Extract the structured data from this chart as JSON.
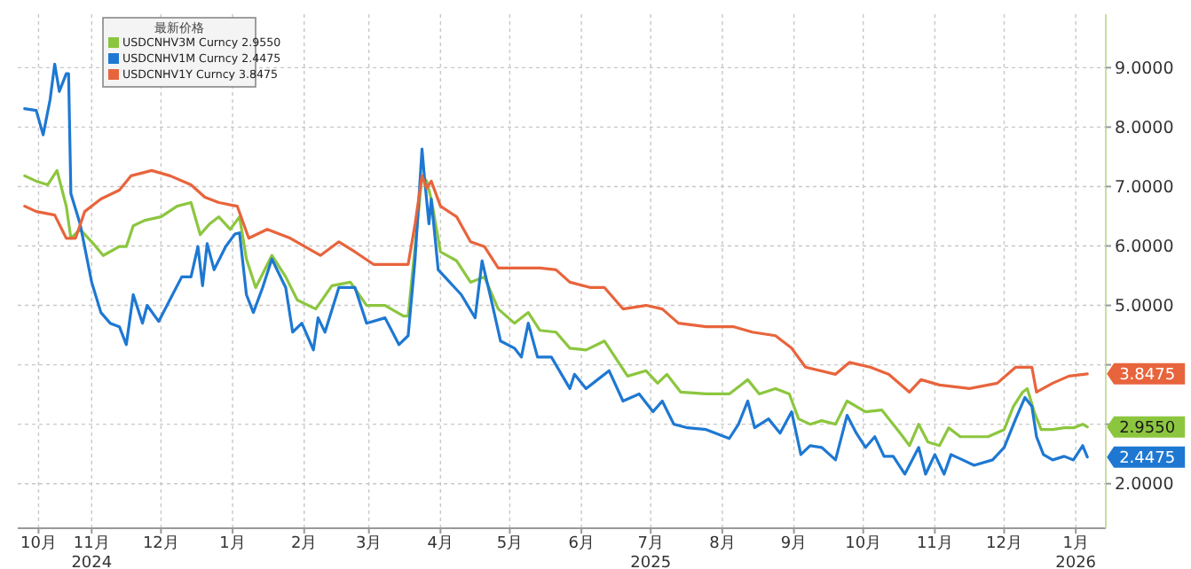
{
  "chart_data": {
    "type": "line",
    "legend_title": "最新价格",
    "legend": "top left",
    "grid": true,
    "line_style": "solid",
    "marker": "none",
    "xlim": [
      "2024-10-14",
      "2026-01-28"
    ],
    "xticks": [
      {
        "value": "2024-10-23",
        "label": "10月"
      },
      {
        "value": "2024-11-15",
        "label": "11月\n2024"
      },
      {
        "value": "2024-12-15",
        "label": "12月"
      },
      {
        "value": "2025-01-15",
        "label": "1月"
      },
      {
        "value": "2025-02-15",
        "label": "2月"
      },
      {
        "value": "2025-03-15",
        "label": "3月"
      },
      {
        "value": "2025-04-15",
        "label": "4月"
      },
      {
        "value": "2025-05-15",
        "label": "5月"
      },
      {
        "value": "2025-06-15",
        "label": "6月"
      },
      {
        "value": "2025-07-15",
        "label": "7月\n2025"
      },
      {
        "value": "2025-08-15",
        "label": "8月"
      },
      {
        "value": "2025-09-15",
        "label": "9月"
      },
      {
        "value": "2025-10-15",
        "label": "10月"
      },
      {
        "value": "2025-11-15",
        "label": "11月"
      },
      {
        "value": "2025-12-15",
        "label": "12月"
      },
      {
        "value": "2026-01-15",
        "label": "1月\n2026"
      }
    ],
    "ylim": [
      1.25,
      9.9
    ],
    "yticks": [
      {
        "value": 2,
        "label": "2.0000"
      },
      {
        "value": 3,
        "label": null
      },
      {
        "value": 4,
        "label": null
      },
      {
        "value": 5,
        "label": "5.0000"
      },
      {
        "value": 6,
        "label": "6.0000"
      },
      {
        "value": 7,
        "label": "7.0000"
      },
      {
        "value": 8,
        "label": "8.0000"
      },
      {
        "value": 9,
        "label": "9.0000"
      }
    ],
    "series": [
      {
        "name": "USDCNHV3M Curncy 2.9550",
        "color": "#8cc63f",
        "x": [
          "2024-10-17",
          "2024-10-22",
          "2024-10-27",
          "2024-10-31",
          "2024-11-04",
          "2024-11-06",
          "2024-11-10",
          "2024-11-15",
          "2024-11-20",
          "2024-11-27",
          "2024-11-30",
          "2024-12-03",
          "2024-12-08",
          "2024-12-15",
          "2024-12-22",
          "2024-12-28",
          "2025-01-01",
          "2025-01-05",
          "2025-01-09",
          "2025-01-14",
          "2025-01-18",
          "2025-01-21",
          "2025-01-25",
          "2025-02-01",
          "2025-02-07",
          "2025-02-12",
          "2025-02-20",
          "2025-02-27",
          "2025-03-07",
          "2025-03-14",
          "2025-03-22",
          "2025-03-30",
          "2025-04-01",
          "2025-04-04",
          "2025-04-07",
          "2025-04-09",
          "2025-04-11",
          "2025-04-15",
          "2025-04-22",
          "2025-04-28",
          "2025-05-04",
          "2025-05-10",
          "2025-05-17",
          "2025-05-23",
          "2025-05-28",
          "2025-06-04",
          "2025-06-10",
          "2025-06-17",
          "2025-06-25",
          "2025-07-05",
          "2025-07-13",
          "2025-07-18",
          "2025-07-22",
          "2025-07-28",
          "2025-08-08",
          "2025-08-18",
          "2025-08-23",
          "2025-08-26",
          "2025-08-31",
          "2025-09-07",
          "2025-09-13",
          "2025-09-17",
          "2025-09-22",
          "2025-09-27",
          "2025-10-03",
          "2025-10-08",
          "2025-10-16",
          "2025-10-23",
          "2025-10-31",
          "2025-11-04",
          "2025-11-08",
          "2025-11-12",
          "2025-11-17",
          "2025-11-21",
          "2025-11-26",
          "2025-12-08",
          "2025-12-15",
          "2025-12-19",
          "2025-12-23",
          "2025-12-25",
          "2025-12-28",
          "2025-12-31",
          "2026-01-05",
          "2026-01-10",
          "2026-01-14",
          "2026-01-18",
          "2026-01-20"
        ],
        "values": [
          7.18,
          7.09,
          7.03,
          7.27,
          6.67,
          6.13,
          6.28,
          6.07,
          5.84,
          5.99,
          5.99,
          6.34,
          6.43,
          6.49,
          6.67,
          6.73,
          6.19,
          6.37,
          6.49,
          6.28,
          6.49,
          5.78,
          5.3,
          5.84,
          5.48,
          5.09,
          4.94,
          5.33,
          5.39,
          5.0,
          5.0,
          4.82,
          4.82,
          5.99,
          7.18,
          7.09,
          6.79,
          5.9,
          5.75,
          5.39,
          5.48,
          4.94,
          4.7,
          4.88,
          4.58,
          4.55,
          4.28,
          4.25,
          4.4,
          3.81,
          3.9,
          3.69,
          3.84,
          3.54,
          3.51,
          3.51,
          3.66,
          3.75,
          3.51,
          3.6,
          3.51,
          3.09,
          3.0,
          3.06,
          3.0,
          3.39,
          3.21,
          3.24,
          2.85,
          2.64,
          3.0,
          2.7,
          2.64,
          2.94,
          2.79,
          2.79,
          2.91,
          3.3,
          3.54,
          3.6,
          3.21,
          2.91,
          2.91,
          2.94,
          2.94,
          3.0,
          2.955
        ]
      },
      {
        "name": "USDCNHV1M Curncy 2.4475",
        "color": "#1e78d2",
        "x": [
          "2024-10-17",
          "2024-10-22",
          "2024-10-25",
          "2024-10-28",
          "2024-10-30",
          "2024-11-01",
          "2024-11-04",
          "2024-11-05",
          "2024-11-06",
          "2024-11-10",
          "2024-11-15",
          "2024-11-19",
          "2024-11-23",
          "2024-11-27",
          "2024-11-30",
          "2024-12-03",
          "2024-12-07",
          "2024-12-09",
          "2024-12-14",
          "2024-12-20",
          "2024-12-24",
          "2024-12-28",
          "2024-12-31",
          "2025-01-02",
          "2025-01-04",
          "2025-01-07",
          "2025-01-12",
          "2025-01-16",
          "2025-01-18",
          "2025-01-21",
          "2025-01-24",
          "2025-01-28",
          "2025-02-01",
          "2025-02-07",
          "2025-02-10",
          "2025-02-14",
          "2025-02-19",
          "2025-02-21",
          "2025-02-24",
          "2025-03-02",
          "2025-03-09",
          "2025-03-14",
          "2025-03-22",
          "2025-03-28",
          "2025-04-01",
          "2025-04-04",
          "2025-04-07",
          "2025-04-08",
          "2025-04-10",
          "2025-04-11",
          "2025-04-14",
          "2025-04-19",
          "2025-04-24",
          "2025-04-30",
          "2025-05-03",
          "2025-05-07",
          "2025-05-11",
          "2025-05-17",
          "2025-05-20",
          "2025-05-23",
          "2025-05-27",
          "2025-06-02",
          "2025-06-10",
          "2025-06-12",
          "2025-06-17",
          "2025-06-22",
          "2025-06-27",
          "2025-07-03",
          "2025-07-10",
          "2025-07-16",
          "2025-07-20",
          "2025-07-25",
          "2025-07-31",
          "2025-08-08",
          "2025-08-18",
          "2025-08-22",
          "2025-08-26",
          "2025-08-29",
          "2025-09-04",
          "2025-09-09",
          "2025-09-14",
          "2025-09-18",
          "2025-09-22",
          "2025-09-27",
          "2025-10-03",
          "2025-10-08",
          "2025-10-12",
          "2025-10-16",
          "2025-10-20",
          "2025-10-24",
          "2025-10-28",
          "2025-11-02",
          "2025-11-08",
          "2025-11-11",
          "2025-11-15",
          "2025-11-19",
          "2025-11-22",
          "2025-11-27",
          "2025-12-02",
          "2025-12-10",
          "2025-12-15",
          "2025-12-20",
          "2025-12-24",
          "2025-12-27",
          "2025-12-29",
          "2026-01-01",
          "2026-01-05",
          "2026-01-10",
          "2026-01-14",
          "2026-01-18",
          "2026-01-20"
        ],
        "values": [
          8.31,
          8.28,
          7.87,
          8.46,
          9.06,
          8.6,
          8.9,
          8.9,
          6.88,
          6.37,
          5.39,
          4.88,
          4.7,
          4.64,
          4.34,
          5.18,
          4.7,
          5.0,
          4.73,
          5.18,
          5.48,
          5.48,
          5.99,
          5.33,
          6.04,
          5.6,
          5.99,
          6.2,
          6.22,
          5.18,
          4.88,
          5.3,
          5.78,
          5.3,
          4.55,
          4.7,
          4.25,
          4.79,
          4.55,
          5.3,
          5.3,
          4.7,
          4.79,
          4.34,
          4.49,
          5.78,
          7.63,
          7.18,
          6.37,
          6.79,
          5.6,
          5.39,
          5.18,
          4.79,
          5.75,
          5.09,
          4.4,
          4.28,
          4.13,
          4.7,
          4.13,
          4.13,
          3.6,
          3.84,
          3.6,
          3.75,
          3.9,
          3.39,
          3.51,
          3.21,
          3.39,
          3.0,
          2.94,
          2.91,
          2.76,
          3.0,
          3.39,
          2.94,
          3.09,
          2.85,
          3.21,
          2.49,
          2.64,
          2.61,
          2.4,
          3.15,
          2.85,
          2.61,
          2.79,
          2.46,
          2.46,
          2.16,
          2.61,
          2.16,
          2.49,
          2.16,
          2.49,
          2.4,
          2.31,
          2.4,
          2.61,
          3.09,
          3.45,
          3.3,
          2.79,
          2.49,
          2.4,
          2.46,
          2.4,
          2.64,
          2.4475
        ]
      },
      {
        "name": "USDCNHV1Y Curncy 3.8475",
        "color": "#e8643c",
        "x": [
          "2024-10-17",
          "2024-10-22",
          "2024-10-30",
          "2024-11-04",
          "2024-11-08",
          "2024-11-12",
          "2024-11-19",
          "2024-11-27",
          "2024-12-02",
          "2024-12-11",
          "2024-12-19",
          "2024-12-28",
          "2025-01-03",
          "2025-01-09",
          "2025-01-17",
          "2025-01-22",
          "2025-01-30",
          "2025-02-09",
          "2025-02-22",
          "2025-03-02",
          "2025-03-09",
          "2025-03-17",
          "2025-03-30",
          "2025-04-01",
          "2025-04-04",
          "2025-04-07",
          "2025-04-09",
          "2025-04-11",
          "2025-04-15",
          "2025-04-22",
          "2025-04-28",
          "2025-05-04",
          "2025-05-10",
          "2025-05-20",
          "2025-05-28",
          "2025-06-04",
          "2025-06-10",
          "2025-06-19",
          "2025-06-25",
          "2025-07-03",
          "2025-07-13",
          "2025-07-20",
          "2025-07-27",
          "2025-08-08",
          "2025-08-20",
          "2025-08-28",
          "2025-09-07",
          "2025-09-14",
          "2025-09-20",
          "2025-10-03",
          "2025-10-09",
          "2025-10-18",
          "2025-10-26",
          "2025-11-04",
          "2025-11-09",
          "2025-11-17",
          "2025-11-30",
          "2025-12-12",
          "2025-12-20",
          "2025-12-27",
          "2025-12-29",
          "2026-01-05",
          "2026-01-12",
          "2026-01-20"
        ],
        "values": [
          6.67,
          6.58,
          6.52,
          6.13,
          6.13,
          6.58,
          6.79,
          6.94,
          7.18,
          7.27,
          7.18,
          7.03,
          6.82,
          6.73,
          6.67,
          6.13,
          6.28,
          6.13,
          5.84,
          6.07,
          5.9,
          5.69,
          5.69,
          5.69,
          6.37,
          7.18,
          6.97,
          7.09,
          6.67,
          6.49,
          6.07,
          5.99,
          5.63,
          5.63,
          5.63,
          5.6,
          5.39,
          5.3,
          5.3,
          4.94,
          5.0,
          4.94,
          4.7,
          4.64,
          4.64,
          4.55,
          4.49,
          4.28,
          3.96,
          3.84,
          4.04,
          3.96,
          3.84,
          3.54,
          3.75,
          3.66,
          3.6,
          3.69,
          3.96,
          3.96,
          3.54,
          3.69,
          3.81,
          3.8475
        ]
      }
    ],
    "annotations": [
      {
        "text": "2.9550",
        "x": "2026-01-20",
        "y": 2.955
      },
      {
        "text": "2.4475",
        "x": "2026-01-20",
        "y": 2.4475
      },
      {
        "text": "3.8475",
        "x": "2026-01-20",
        "y": 3.8475
      }
    ]
  }
}
